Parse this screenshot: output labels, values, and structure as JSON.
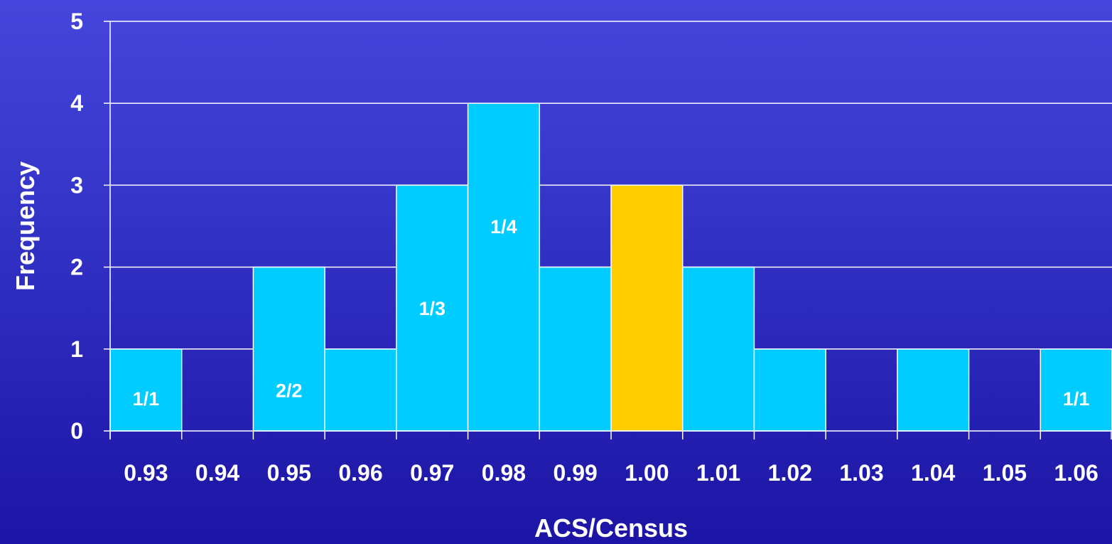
{
  "chart_data": {
    "type": "bar",
    "title": "",
    "xlabel": "ACS/Census",
    "ylabel": "Frequency",
    "categories": [
      "0.93",
      "0.94",
      "0.95",
      "0.96",
      "0.97",
      "0.98",
      "0.99",
      "1.00",
      "1.01",
      "1.02",
      "1.03",
      "1.04",
      "1.05",
      "1.06"
    ],
    "values": [
      1,
      0,
      2,
      1,
      3,
      4,
      2,
      3,
      2,
      1,
      0,
      1,
      0,
      1
    ],
    "bar_labels": [
      "1/1",
      "",
      "2/2",
      "",
      "1/3",
      "1/4",
      "",
      "",
      "",
      "",
      "",
      "",
      "",
      "1/1"
    ],
    "highlight_category": "1.00",
    "yticks": [
      0,
      1,
      2,
      3,
      4,
      5
    ],
    "ylim": [
      0,
      5
    ],
    "grid": true,
    "legend": "none",
    "colors": {
      "bar": "#00ccff",
      "highlight": "#ffcc00",
      "grid": "#ffffff",
      "text": "#ffffff"
    }
  }
}
